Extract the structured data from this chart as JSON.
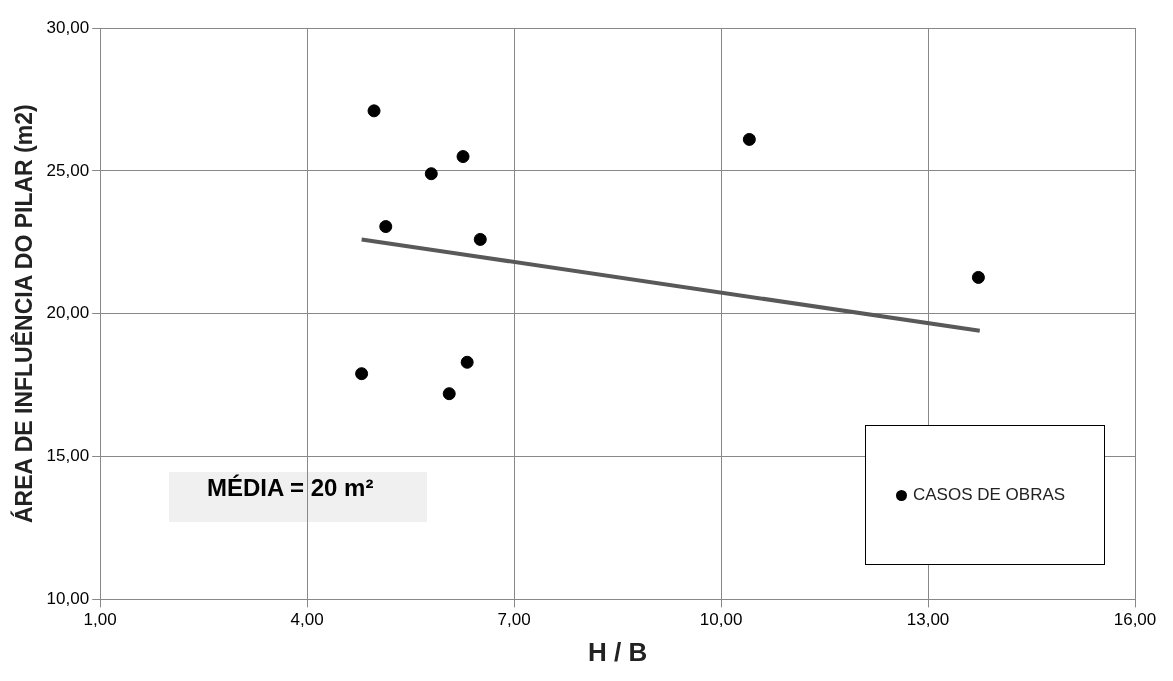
{
  "chart_data": {
    "type": "scatter",
    "xlabel": "H / B",
    "ylabel": "ÁREA DE INFLUÊNCIA DO PILAR (m2)",
    "xlim": [
      1,
      16
    ],
    "ylim": [
      10,
      30
    ],
    "xticks": [
      {
        "value": 1,
        "label": "1,00"
      },
      {
        "value": 4,
        "label": "4,00"
      },
      {
        "value": 7,
        "label": "7,00"
      },
      {
        "value": 10,
        "label": "10,00"
      },
      {
        "value": 13,
        "label": "13,00"
      },
      {
        "value": 16,
        "label": "16,00"
      }
    ],
    "yticks": [
      {
        "value": 10,
        "label": "10,00"
      },
      {
        "value": 15,
        "label": "15,00"
      },
      {
        "value": 20,
        "label": "20,00"
      },
      {
        "value": 25,
        "label": "25,00"
      },
      {
        "value": 30,
        "label": "30,00"
      }
    ],
    "grid": true,
    "legend": "bottom right",
    "marker": "circle",
    "series": [
      {
        "name": "CASOS DE OBRAS",
        "color": "#000000",
        "x": [
          4.97,
          6.26,
          5.8,
          5.14,
          6.51,
          4.79,
          6.32,
          6.06,
          10.41,
          13.73
        ],
        "values": [
          27.1,
          25.5,
          24.9,
          23.05,
          22.6,
          17.9,
          18.3,
          17.2,
          26.1,
          21.27
        ]
      },
      {
        "type": "line",
        "color": "#595959",
        "line_style": "solid",
        "marker": "none",
        "x": [
          4.79,
          13.75
        ],
        "values": [
          22.6,
          19.4
        ]
      }
    ],
    "annotations": [
      "MÉDIA = 20 m²"
    ]
  }
}
